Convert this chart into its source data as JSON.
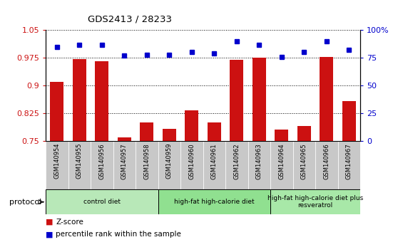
{
  "title": "GDS2413 / 28233",
  "samples": [
    "GSM140954",
    "GSM140955",
    "GSM140956",
    "GSM140957",
    "GSM140958",
    "GSM140959",
    "GSM140960",
    "GSM140961",
    "GSM140962",
    "GSM140963",
    "GSM140964",
    "GSM140965",
    "GSM140966",
    "GSM140967"
  ],
  "z_scores": [
    0.91,
    0.972,
    0.965,
    0.758,
    0.8,
    0.782,
    0.832,
    0.8,
    0.97,
    0.975,
    0.78,
    0.79,
    0.978,
    0.858
  ],
  "percentile_ranks": [
    85,
    87,
    87,
    77,
    78,
    78,
    80,
    79,
    90,
    87,
    76,
    80,
    90,
    82
  ],
  "bar_color": "#cc1111",
  "dot_color": "#0000cc",
  "ylim_left": [
    0.75,
    1.05
  ],
  "ylim_right": [
    0,
    100
  ],
  "yticks_left": [
    0.75,
    0.825,
    0.9,
    0.975,
    1.05
  ],
  "ytick_labels_left": [
    "0.75",
    "0.825",
    "0.9",
    "0.975",
    "1.05"
  ],
  "yticks_right": [
    0,
    25,
    50,
    75,
    100
  ],
  "ytick_labels_right": [
    "0",
    "25",
    "50",
    "75",
    "100%"
  ],
  "groups": [
    {
      "label": "control diet",
      "start": 0,
      "end": 5,
      "color": "#b8e8b8"
    },
    {
      "label": "high-fat high-calorie diet",
      "start": 5,
      "end": 10,
      "color": "#90e090"
    },
    {
      "label": "high-fat high-calorie diet plus\nresveratrol",
      "start": 10,
      "end": 14,
      "color": "#a8e8a8"
    }
  ],
  "legend_z_label": "Z-score",
  "legend_pct_label": "percentile rank within the sample",
  "protocol_label": "protocol",
  "bar_color_hex": "#cc1111",
  "dot_color_hex": "#0000cc",
  "tick_bg_color": "#c8c8c8",
  "bar_width": 0.6,
  "background_color": "#ffffff"
}
